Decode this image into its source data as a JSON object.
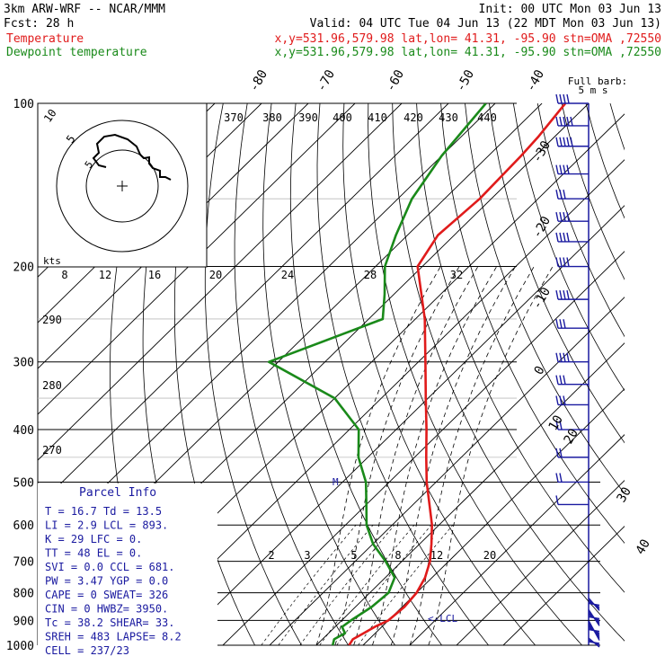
{
  "header": {
    "model": "3km ARW-WRF -- NCAR/MMM",
    "init": "Init: 00 UTC Mon 03 Jun 13",
    "fcst": "Fcst:   28 h",
    "valid": "Valid: 04 UTC Tue 04 Jun 13 (22 MDT Mon 03 Jun 13)",
    "temperature_label": "Temperature",
    "temperature_info": "x,y=531.96,579.98   lat,lon= 41.31, -95.90  stn=OMA ,72550",
    "dewpoint_label": "Dewpoint temperature",
    "dewpoint_info": "x,y=531.96,579.98   lat,lon= 41.31, -95.90  stn=OMA ,72550"
  },
  "colors": {
    "temperature": "#e01b1b",
    "dewpoint": "#1a8a1a",
    "parcel": "#1a1aa0",
    "grid": "#000000"
  },
  "barb_legend": {
    "title": "Full barb:",
    "value": "5 m s"
  },
  "hodograph": {
    "kts_label": "kts",
    "ring_labels": [
      "5",
      "10"
    ],
    "ring_label_1": "5",
    "ring_label_2": "10"
  },
  "parcel_info": {
    "title": "Parcel Info",
    "lines": [
      "T  =   16.7  Td =  13.5",
      "LI =    2.9  LCL =  893.",
      "K  =     29  LFC =    0.",
      "TT =     48  EL  =    0.",
      "SVI =   0.0  CCL =  681.",
      "PW =   3.47  YGP =   0.0",
      "CAPE =    0  SWEAT=  326",
      "CIN =     0  HWBZ= 3950.",
      "Tc =   38.2  SHEAR=  33.",
      "SREH =  483  LAPSE=  8.2",
      "CELL = 237/23"
    ]
  },
  "markers": {
    "lcl": "<-LCL",
    "m": "M"
  },
  "chart_data": {
    "type": "line",
    "title": "",
    "xlabel": "",
    "ylabel": "",
    "y_axis": "pressure (hPa), log scale",
    "pressure_levels": [
      100,
      200,
      300,
      400,
      500,
      600,
      700,
      800,
      900,
      1000
    ],
    "pressure_tick_labels": [
      "100",
      "200",
      "300",
      "400",
      "500",
      "600",
      "700",
      "800",
      "900",
      "1000"
    ],
    "isotherm_labels": [
      "-80",
      "-70",
      "-60",
      "-50",
      "-40",
      "-30",
      "-20",
      "-10",
      "0",
      "10",
      "20",
      "30",
      "40"
    ],
    "theta_labels": [
      "370",
      "380",
      "390",
      "400",
      "410",
      "420",
      "430",
      "440"
    ],
    "theta_low_labels": [
      "290",
      "280",
      "270"
    ],
    "mixing_ratio_top_labels": [
      "8",
      "12",
      "16",
      "20",
      "24",
      "28",
      "32"
    ],
    "mixing_ratio_low_labels": [
      "2",
      "3",
      "5",
      "8",
      "12",
      "20"
    ],
    "series": [
      {
        "name": "Temperature",
        "color": "#e01b1b",
        "points": [
          [
            1000,
            17.0
          ],
          [
            975,
            16.5
          ],
          [
            950,
            17.5
          ],
          [
            925,
            18.5
          ],
          [
            900,
            20.0
          ],
          [
            850,
            20.5
          ],
          [
            800,
            20.0
          ],
          [
            750,
            18.5
          ],
          [
            700,
            16.0
          ],
          [
            650,
            12.5
          ],
          [
            600,
            8.5
          ],
          [
            550,
            3.5
          ],
          [
            500,
            -2.0
          ],
          [
            450,
            -7.5
          ],
          [
            400,
            -13.5
          ],
          [
            350,
            -20.5
          ],
          [
            300,
            -28.5
          ],
          [
            250,
            -38.0
          ],
          [
            200,
            -51.0
          ],
          [
            175,
            -53.5
          ],
          [
            150,
            -52.5
          ],
          [
            125,
            -53.0
          ],
          [
            115,
            -53.5
          ],
          [
            100,
            -55.0
          ]
        ]
      },
      {
        "name": "Dewpoint temperature",
        "color": "#1a8a1a",
        "points": [
          [
            1000,
            13.5
          ],
          [
            975,
            12.5
          ],
          [
            950,
            13.5
          ],
          [
            925,
            11.5
          ],
          [
            900,
            12.0
          ],
          [
            850,
            13.5
          ],
          [
            800,
            14.0
          ],
          [
            750,
            12.0
          ],
          [
            700,
            6.5
          ],
          [
            650,
            0.0
          ],
          [
            600,
            -5.5
          ],
          [
            550,
            -10.0
          ],
          [
            500,
            -15.0
          ],
          [
            450,
            -22.0
          ],
          [
            400,
            -28.0
          ],
          [
            350,
            -40.0
          ],
          [
            300,
            -62.0
          ],
          [
            250,
            -47.0
          ],
          [
            225,
            -52.0
          ],
          [
            200,
            -58.0
          ],
          [
            175,
            -62.5
          ],
          [
            150,
            -67.0
          ],
          [
            125,
            -70.0
          ],
          [
            100,
            -72.0
          ]
        ]
      }
    ],
    "wind_barbs": [
      [
        100,
        "W",
        40
      ],
      [
        110,
        "W",
        45
      ],
      [
        120,
        "W",
        45
      ],
      [
        135,
        "W",
        35
      ],
      [
        150,
        "W",
        25
      ],
      [
        165,
        "W",
        35
      ],
      [
        180,
        "W",
        40
      ],
      [
        200,
        "W",
        40
      ],
      [
        230,
        "W",
        35
      ],
      [
        260,
        "W",
        30
      ],
      [
        300,
        "W",
        35
      ],
      [
        330,
        "W",
        30
      ],
      [
        360,
        "W",
        25
      ],
      [
        400,
        "W",
        20
      ],
      [
        450,
        "W",
        20
      ],
      [
        500,
        "W",
        15
      ],
      [
        550,
        "W",
        10
      ],
      [
        850,
        "S",
        20
      ],
      [
        900,
        "S",
        25
      ],
      [
        950,
        "S",
        30
      ],
      [
        1000,
        "S",
        15
      ]
    ],
    "lcl_pressure": 893,
    "grid": true
  }
}
